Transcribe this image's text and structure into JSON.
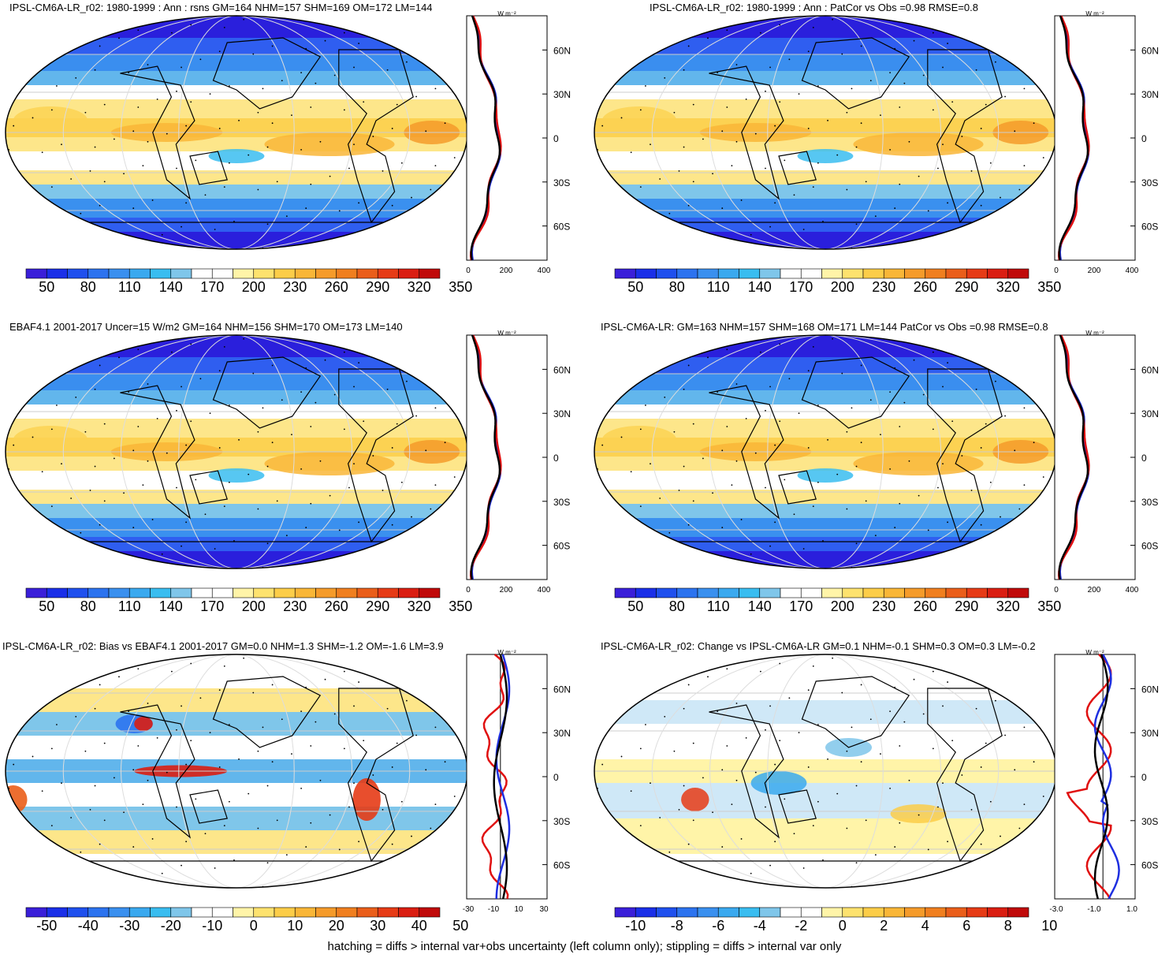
{
  "footnote": "hatching = diffs > internal var+obs uncertainty (left column only); stippling = diffs > internal var only",
  "profile_unit": "W m⁻²",
  "lat_labels": [
    "60N",
    "30N",
    "0",
    "30S",
    "60S"
  ],
  "seq_colors": [
    "#3a1fd9",
    "#1a2fe8",
    "#1f50ee",
    "#2c73ef",
    "#3a90ef",
    "#3aa9ef",
    "#39bdf0",
    "#7fc6ea",
    "#ffffff",
    "#ffffff",
    "#fff4a8",
    "#fde26e",
    "#fccd48",
    "#f9b637",
    "#f59b2a",
    "#f07f1f",
    "#ea5e1a",
    "#e63b16",
    "#da1e12",
    "#c00a0a"
  ],
  "div_colors": [
    "#3a1fd9",
    "#1a2fe8",
    "#1f50ee",
    "#2c73ef",
    "#3a90ef",
    "#3aa9ef",
    "#39bdf0",
    "#7fc6ea",
    "#ffffff",
    "#ffffff",
    "#fff4a8",
    "#fde26e",
    "#fccd48",
    "#f9b637",
    "#f59b2a",
    "#f07f1f",
    "#ea5e1a",
    "#e63b16",
    "#da1e12",
    "#c00a0a"
  ],
  "panels": [
    {
      "title": "IPSL-CM6A-LR_r02: 1980-1999 : Ann : rsns GM=164 NHM=157 SHM=169 OM=172 LM=144",
      "cbar_labels": [
        "50",
        "80",
        "110",
        "140",
        "170",
        "200",
        "230",
        "260",
        "290",
        "320",
        "350"
      ],
      "prof_ticks": [
        "0",
        "200",
        "400"
      ],
      "kind": "abs"
    },
    {
      "title": "IPSL-CM6A-LR_r02: 1980-1999 : Ann : PatCor vs Obs =0.98 RMSE=0.8",
      "cbar_labels": [
        "50",
        "80",
        "110",
        "140",
        "170",
        "200",
        "230",
        "260",
        "290",
        "320",
        "350"
      ],
      "prof_ticks": [
        "0",
        "200",
        "400"
      ],
      "kind": "abs"
    },
    {
      "title": "EBAF4.1 2001-2017 Uncer=15 W/m2 GM=164 NHM=156 SHM=170 OM=173 LM=140",
      "cbar_labels": [
        "50",
        "80",
        "110",
        "140",
        "170",
        "200",
        "230",
        "260",
        "290",
        "320",
        "350"
      ],
      "prof_ticks": [
        "0",
        "200",
        "400"
      ],
      "kind": "abs"
    },
    {
      "title": "IPSL-CM6A-LR: GM=163 NHM=157 SHM=168 OM=171 LM=144 PatCor vs Obs =0.98 RMSE=0.8",
      "cbar_labels": [
        "50",
        "80",
        "110",
        "140",
        "170",
        "200",
        "230",
        "260",
        "290",
        "320",
        "350"
      ],
      "prof_ticks": [
        "0",
        "200",
        "400"
      ],
      "kind": "abs"
    },
    {
      "title": "IPSL-CM6A-LR_r02: Bias vs EBAF4.1 2001-2017 GM=0.0 NHM=1.3 SHM=-1.2 OM=-1.6 LM=3.9",
      "cbar_labels": [
        "-50",
        "-40",
        "-30",
        "-20",
        "-10",
        "0",
        "10",
        "20",
        "30",
        "40",
        "50"
      ],
      "prof_ticks": [
        "-30",
        "-10",
        "10",
        "30"
      ],
      "kind": "bias"
    },
    {
      "title": "IPSL-CM6A-LR_r02: Change vs IPSL-CM6A-LR GM=0.1 NHM=-0.1 SHM=0.3 OM=0.3 LM=-0.2",
      "cbar_labels": [
        "-10",
        "-8",
        "-6",
        "-4",
        "-2",
        "0",
        "2",
        "4",
        "6",
        "8",
        "10"
      ],
      "prof_ticks": [
        "-3.0",
        "-1.0",
        "1.0"
      ],
      "kind": "change"
    }
  ]
}
